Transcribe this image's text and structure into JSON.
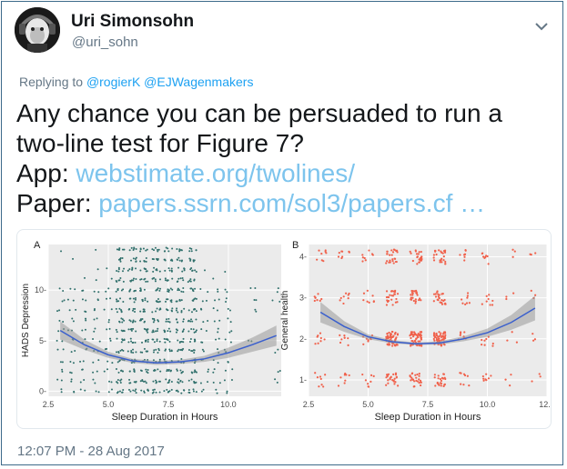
{
  "tweet": {
    "author_name": "Uri Simonsohn",
    "author_handle": "@uri_sohn",
    "reply_prefix": "Replying to",
    "reply_mentions": [
      "@rogierK",
      "@EJWagenmakers"
    ],
    "line1": "Any chance you can be persuaded to run a",
    "line2": "two-line test for Figure 7?",
    "app_label": "App:",
    "app_link": "webstimate.org/twolines/",
    "paper_label": "Paper:",
    "paper_link": "papers.ssrn.com/sol3/papers.cf …",
    "timestamp": "12:07 PM - 28 Aug 2017"
  },
  "icons": {
    "avatar": "avatar-image",
    "menu": "chevron-down-icon"
  },
  "colors": {
    "link": "#7dc4ed",
    "mention": "#1da1f2",
    "teal_points": "#2f6f6b",
    "coral_points": "#f0614b",
    "fit_line": "#3a5fcd",
    "ribbon": "#999999",
    "panel_bg": "#ebebeb"
  },
  "chart_data": [
    {
      "type": "scatter",
      "panel_label": "A",
      "xlabel": "Sleep Duration in Hours",
      "ylabel": "HADS Depression",
      "xlim": [
        2.5,
        12.2
      ],
      "ylim": [
        -0.5,
        14.5
      ],
      "x_ticks": [
        2.5,
        5.0,
        7.5,
        10.0
      ],
      "x_tick_labels": [
        "2.5",
        "5.0",
        "7.5",
        "10.0"
      ],
      "y_ticks": [
        0,
        5,
        10
      ],
      "y_tick_labels": [
        "0-",
        "5-",
        "10-"
      ],
      "grid": true,
      "point_color": "#2f6f6b",
      "x_levels": [
        3,
        3.5,
        4,
        4.5,
        5,
        5.5,
        6,
        6.5,
        7,
        7.5,
        8,
        8.5,
        9,
        9.5,
        10,
        11,
        12
      ],
      "fit_curve": {
        "x": [
          3,
          4,
          5,
          6,
          7,
          8,
          9,
          10,
          11,
          12
        ],
        "y": [
          6.0,
          4.6,
          3.6,
          3.0,
          2.8,
          2.9,
          3.2,
          3.8,
          4.6,
          5.5
        ]
      },
      "ribbon_halfwidth": [
        0.9,
        0.5,
        0.3,
        0.2,
        0.2,
        0.2,
        0.3,
        0.5,
        0.7,
        1.0
      ]
    },
    {
      "type": "scatter",
      "panel_label": "B",
      "xlabel": "Sleep Duration in Hours",
      "ylabel": "General health",
      "xlim": [
        2.5,
        12.5
      ],
      "ylim": [
        0.6,
        4.3
      ],
      "x_ticks": [
        2.5,
        5.0,
        7.5,
        10.0,
        12.5
      ],
      "x_tick_labels": [
        "2.5",
        "5.0",
        "7.5",
        "10.0",
        "12.5"
      ],
      "y_ticks": [
        1,
        2,
        3,
        4
      ],
      "y_tick_labels": [
        "1-",
        "2-",
        "3-",
        "4-"
      ],
      "grid": true,
      "point_color": "#f0614b",
      "x_levels": [
        3,
        4,
        5,
        6,
        7,
        8,
        9,
        10,
        11,
        12
      ],
      "fit_curve": {
        "x": [
          3,
          4,
          5,
          6,
          7,
          8,
          9,
          10,
          11,
          12
        ],
        "y": [
          2.65,
          2.3,
          2.05,
          1.93,
          1.88,
          1.9,
          2.0,
          2.15,
          2.4,
          2.75
        ]
      },
      "ribbon_halfwidth": [
        0.25,
        0.13,
        0.06,
        0.04,
        0.03,
        0.04,
        0.06,
        0.1,
        0.18,
        0.3
      ]
    }
  ]
}
